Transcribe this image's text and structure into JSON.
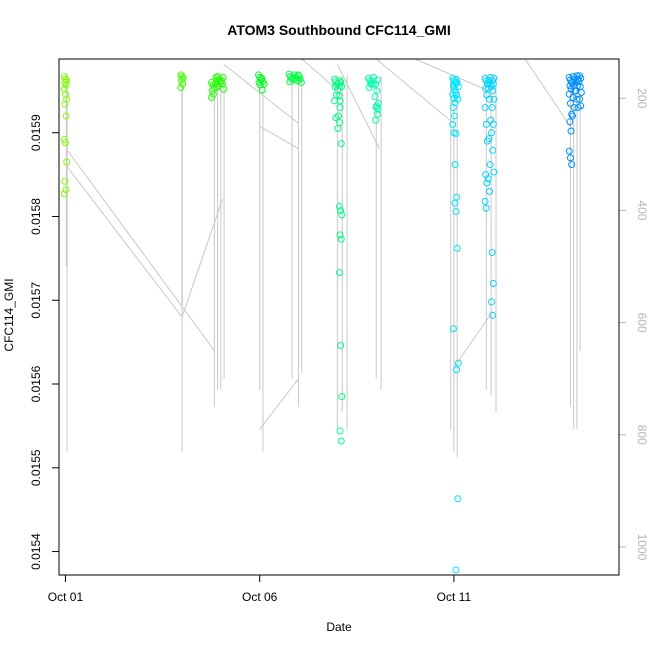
{
  "chart_data": {
    "type": "scatter",
    "title": "ATOM3 Southbound CFC114_GMI",
    "xlabel": "Date",
    "ylabel": "CFC114_GMI",
    "x_ticks": [
      {
        "value": "2017-10-01",
        "label": "Oct 01"
      },
      {
        "value": "2017-10-06",
        "label": "Oct 06"
      },
      {
        "value": "2017-10-11",
        "label": "Oct 11"
      }
    ],
    "y_ticks": [
      0.0154,
      0.0155,
      0.0156,
      0.0157,
      0.0158,
      0.0159
    ],
    "y2_label": "",
    "y2_ticks": [
      200,
      400,
      600,
      800,
      1000
    ],
    "xlim": [
      "2017-09-30T20:00",
      "2017-10-15T06:00"
    ],
    "ylim": [
      0.015372,
      0.015988
    ],
    "y2lim": [
      1050,
      130
    ],
    "y2_reversed": true,
    "y2_tick_color": "#b5b5b5",
    "grid": false,
    "legend": "none",
    "colors": {
      "day1": "#80ff00",
      "day4": "#40ff00",
      "day5": "#20ff00",
      "day6": "#00ff20",
      "day7": "#00ff40",
      "day8": "#00ff80",
      "day9": "#00ffaa",
      "day11": "#00e6ff",
      "day12": "#00d5ff",
      "day14": "#0090ff",
      "pressure_line": "#c8c8c8"
    },
    "pressure_profiles": [
      {
        "time": "2017-10-01T00:30",
        "min": 155,
        "max": 500
      },
      {
        "time": "2017-10-01T01:00",
        "min": 160,
        "max": 830
      },
      {
        "time": "2017-10-04T00:00",
        "min": 160,
        "max": 830
      },
      {
        "time": "2017-10-04T00:15",
        "min": 170,
        "max": 570
      },
      {
        "time": "2017-10-04T20:00",
        "min": 160,
        "max": 750
      },
      {
        "time": "2017-10-04T22:00",
        "min": 160,
        "max": 720
      },
      {
        "time": "2017-10-05T00:00",
        "min": 160,
        "max": 720
      },
      {
        "time": "2017-10-05T02:00",
        "min": 160,
        "max": 700
      },
      {
        "time": "2017-10-06T00:00",
        "min": 160,
        "max": 720
      },
      {
        "time": "2017-10-06T02:00",
        "min": 160,
        "max": 830
      },
      {
        "time": "2017-10-06T20:00",
        "min": 160,
        "max": 700
      },
      {
        "time": "2017-10-07T00:00",
        "min": 160,
        "max": 750
      },
      {
        "time": "2017-10-07T02:00",
        "min": 160,
        "max": 690
      },
      {
        "time": "2017-10-08T00:00",
        "min": 160,
        "max": 790
      },
      {
        "time": "2017-10-08T03:00",
        "min": 160,
        "max": 760
      },
      {
        "time": "2017-10-08T06:00",
        "min": 160,
        "max": 790
      },
      {
        "time": "2017-10-09T00:00",
        "min": 160,
        "max": 700
      },
      {
        "time": "2017-10-09T03:00",
        "min": 160,
        "max": 720
      },
      {
        "time": "2017-10-10T22:00",
        "min": 160,
        "max": 790
      },
      {
        "time": "2017-10-11T00:00",
        "min": 160,
        "max": 830
      },
      {
        "time": "2017-10-11T02:00",
        "min": 160,
        "max": 840
      },
      {
        "time": "2017-10-11T20:00",
        "min": 160,
        "max": 720
      },
      {
        "time": "2017-10-11T23:00",
        "min": 160,
        "max": 730
      },
      {
        "time": "2017-10-12T02:00",
        "min": 160,
        "max": 760
      },
      {
        "time": "2017-10-14T00:00",
        "min": 160,
        "max": 750
      },
      {
        "time": "2017-10-14T02:00",
        "min": 160,
        "max": 790
      },
      {
        "time": "2017-10-14T04:00",
        "min": 160,
        "max": 790
      },
      {
        "time": "2017-10-14T06:00",
        "min": 160,
        "max": 650
      }
    ],
    "pressure_transits": [
      {
        "from": [
          "2017-10-01T00:30",
          320
        ],
        "to": [
          "2017-10-04T00:00",
          590
        ]
      },
      {
        "from": [
          "2017-10-01T00:30",
          290
        ],
        "to": [
          "2017-10-04T20:00",
          650
        ]
      },
      {
        "from": [
          "2017-10-04T00:00",
          590
        ],
        "to": [
          "2017-10-05T01:00",
          380
        ]
      },
      {
        "from": [
          "2017-10-05T02:00",
          140
        ],
        "to": [
          "2017-10-07T00:00",
          245
        ]
      },
      {
        "from": [
          "2017-10-06T00:00",
          250
        ],
        "to": [
          "2017-10-07T00:00",
          290
        ]
      },
      {
        "from": [
          "2017-10-06T00:00",
          790
        ],
        "to": [
          "2017-10-07T00:00",
          700
        ]
      },
      {
        "from": [
          "2017-10-07T02:00",
          130
        ],
        "to": [
          "2017-10-08T04:00",
          195
        ]
      },
      {
        "from": [
          "2017-10-08T00:00",
          140
        ],
        "to": [
          "2017-10-09T02:00",
          290
        ]
      },
      {
        "from": [
          "2017-10-09T00:00",
          130
        ],
        "to": [
          "2017-10-11T00:00",
          245
        ]
      },
      {
        "from": [
          "2017-10-10T00:00",
          130
        ],
        "to": [
          "2017-10-11T20:00",
          185
        ]
      },
      {
        "from": [
          "2017-10-11T00:00",
          680
        ],
        "to": [
          "2017-10-12T00:00",
          580
        ]
      },
      {
        "from": [
          "2017-10-12T20:00",
          130
        ],
        "to": [
          "2017-10-14T01:00",
          255
        ]
      }
    ],
    "series": [
      {
        "group": "day1",
        "x": [
          "2017-10-01T00:00",
          "2017-10-01T00:00",
          "2017-10-01T00:00",
          "2017-10-01T00:00",
          "2017-10-01T00:00",
          "2017-10-01T00:00",
          "2017-10-01T00:00",
          "2017-10-01T00:00",
          "2017-10-01T00:00",
          "2017-10-01T00:00",
          "2017-10-01T00:00",
          "2017-10-01T00:00",
          "2017-10-01T00:00",
          "2017-10-01T00:00",
          "2017-10-01T00:00",
          "2017-10-01T00:00"
        ],
        "y": [
          0.015967,
          0.015964,
          0.015962,
          0.01596,
          0.015957,
          0.015952,
          0.015946,
          0.01594,
          0.015934,
          0.01592,
          0.015892,
          0.015888,
          0.015865,
          0.015842,
          0.015832,
          0.015827
        ]
      },
      {
        "group": "day4",
        "x": [
          "2017-10-04T00:00",
          "2017-10-04T00:00",
          "2017-10-04T00:00",
          "2017-10-04T00:00",
          "2017-10-04T00:00",
          "2017-10-04T00:00"
        ],
        "y": [
          0.015969,
          0.015967,
          0.015965,
          0.015963,
          0.015958,
          0.015954
        ]
      },
      {
        "group": "day5",
        "x": [
          "2017-10-04T19:00",
          "2017-10-04T19:00",
          "2017-10-04T19:00",
          "2017-10-04T19:00",
          "2017-10-04T19:00",
          "2017-10-04T19:00",
          "2017-10-04T21:00",
          "2017-10-04T21:00",
          "2017-10-04T21:00",
          "2017-10-04T21:00",
          "2017-10-04T23:00",
          "2017-10-04T23:00",
          "2017-10-04T23:00",
          "2017-10-04T23:00",
          "2017-10-05T01:00",
          "2017-10-05T01:00",
          "2017-10-05T01:00",
          "2017-10-05T01:00"
        ],
        "y": [
          0.01596,
          0.015957,
          0.015953,
          0.01595,
          0.015946,
          0.015942,
          0.015966,
          0.015962,
          0.015958,
          0.015954,
          0.015967,
          0.015964,
          0.01596,
          0.015956,
          0.015966,
          0.015962,
          0.015958,
          0.015952
        ]
      },
      {
        "group": "day6",
        "x": [
          "2017-10-06T00:00",
          "2017-10-06T00:00",
          "2017-10-06T00:00",
          "2017-10-06T00:00",
          "2017-10-06T00:00",
          "2017-10-06T02:00",
          "2017-10-06T02:00",
          "2017-10-06T02:00",
          "2017-10-06T02:00"
        ],
        "y": [
          0.015969,
          0.015966,
          0.015963,
          0.01596,
          0.015957,
          0.015965,
          0.015961,
          0.015958,
          0.015951
        ]
      },
      {
        "group": "day7",
        "x": [
          "2017-10-06T19:00",
          "2017-10-06T19:00",
          "2017-10-06T19:00",
          "2017-10-06T19:00",
          "2017-10-06T21:00",
          "2017-10-06T21:00",
          "2017-10-06T21:00",
          "2017-10-06T23:00",
          "2017-10-06T23:00",
          "2017-10-06T23:00",
          "2017-10-07T01:00",
          "2017-10-07T01:00",
          "2017-10-07T01:00"
        ],
        "y": [
          0.01597,
          0.015967,
          0.015964,
          0.015961,
          0.015969,
          0.015966,
          0.015963,
          0.015969,
          0.015966,
          0.015962,
          0.015968,
          0.015964,
          0.01596
        ]
      },
      {
        "group": "day8",
        "x": [
          "2017-10-07T23:00",
          "2017-10-07T23:00",
          "2017-10-07T23:00",
          "2017-10-07T23:00",
          "2017-10-07T23:00",
          "2017-10-07T23:00",
          "2017-10-07T23:00",
          "2017-10-08T01:00",
          "2017-10-08T01:00",
          "2017-10-08T01:00",
          "2017-10-08T01:00",
          "2017-10-08T01:00",
          "2017-10-08T01:00",
          "2017-10-08T01:00",
          "2017-10-08T01:00",
          "2017-10-08T01:00",
          "2017-10-08T02:00",
          "2017-10-08T02:00",
          "2017-10-08T02:00",
          "2017-10-08T02:00",
          "2017-10-08T02:00",
          "2017-10-08T02:00",
          "2017-10-08T02:00",
          "2017-10-08T02:00",
          "2017-10-08T02:00",
          "2017-10-08T02:00",
          "2017-10-08T02:00",
          "2017-10-08T02:00",
          "2017-10-08T02:00",
          "2017-10-08T02:00"
        ],
        "y": [
          0.015964,
          0.015961,
          0.015958,
          0.015955,
          0.015945,
          0.015938,
          0.015918,
          0.015962,
          0.015959,
          0.015956,
          0.015951,
          0.015944,
          0.015938,
          0.01592,
          0.015912,
          0.015905,
          0.01596,
          0.015955,
          0.01593,
          0.015887,
          0.015812,
          0.015807,
          0.015802,
          0.015778,
          0.015773,
          0.015733,
          0.015646,
          0.015585,
          0.015544,
          0.015532
        ]
      },
      {
        "group": "day9",
        "x": [
          "2017-10-08T20:00",
          "2017-10-08T20:00",
          "2017-10-08T20:00",
          "2017-10-08T20:00",
          "2017-10-08T22:00",
          "2017-10-08T22:00",
          "2017-10-08T22:00",
          "2017-10-09T00:00",
          "2017-10-09T00:00",
          "2017-10-09T00:00",
          "2017-10-09T00:00",
          "2017-10-09T00:00",
          "2017-10-09T00:00",
          "2017-10-09T00:00",
          "2017-10-09T01:00",
          "2017-10-09T01:00",
          "2017-10-09T01:00"
        ],
        "y": [
          0.015965,
          0.015962,
          0.015958,
          0.015954,
          0.015966,
          0.015962,
          0.015958,
          0.015963,
          0.015958,
          0.01595,
          0.015943,
          0.01593,
          0.015922,
          0.015915,
          0.015935,
          0.015932,
          0.015928
        ]
      },
      {
        "group": "day11",
        "x": [
          "2017-10-11T00:00",
          "2017-10-11T00:00",
          "2017-10-11T00:00",
          "2017-10-11T00:00",
          "2017-10-11T00:00",
          "2017-10-11T00:00",
          "2017-10-11T00:00",
          "2017-10-11T00:00",
          "2017-10-11T00:00",
          "2017-10-11T00:00",
          "2017-10-11T00:00",
          "2017-10-11T00:00",
          "2017-10-11T00:00",
          "2017-10-11T00:00",
          "2017-10-11T01:00",
          "2017-10-11T01:00",
          "2017-10-11T01:00",
          "2017-10-11T01:00",
          "2017-10-11T01:00",
          "2017-10-11T01:00",
          "2017-10-11T02:00",
          "2017-10-11T02:00",
          "2017-10-11T02:00",
          "2017-10-11T02:00",
          "2017-10-11T02:00",
          "2017-10-11T02:00",
          "2017-10-11T02:00",
          "2017-10-11T02:00",
          "2017-10-11T02:00",
          "2017-10-11T02:00",
          "2017-10-11T02:00"
        ],
        "y": [
          0.015965,
          0.015962,
          0.015959,
          0.015956,
          0.015951,
          0.015946,
          0.015941,
          0.015936,
          0.01593,
          0.01592,
          0.01591,
          0.0159,
          0.015862,
          0.015666,
          0.01596,
          0.015955,
          0.015948,
          0.015823,
          0.015816,
          0.015806,
          0.015964,
          0.01596,
          0.015955,
          0.015945,
          0.01594,
          0.015899,
          0.015762,
          0.015625,
          0.015617,
          0.015463,
          0.015378
        ]
      },
      {
        "group": "day12",
        "x": [
          "2017-10-11T20:00",
          "2017-10-11T20:00",
          "2017-10-11T20:00",
          "2017-10-11T20:00",
          "2017-10-11T20:00",
          "2017-10-11T20:00",
          "2017-10-11T20:00",
          "2017-10-11T20:00",
          "2017-10-11T20:00",
          "2017-10-11T20:00",
          "2017-10-11T20:00",
          "2017-10-11T20:00",
          "2017-10-11T22:00",
          "2017-10-11T22:00",
          "2017-10-11T22:00",
          "2017-10-11T22:00",
          "2017-10-11T22:00",
          "2017-10-11T22:00",
          "2017-10-11T22:00",
          "2017-10-11T22:00",
          "2017-10-11T22:00",
          "2017-10-11T22:00",
          "2017-10-12T00:00",
          "2017-10-12T00:00",
          "2017-10-12T00:00",
          "2017-10-12T00:00",
          "2017-10-12T00:00",
          "2017-10-12T00:00",
          "2017-10-12T00:00",
          "2017-10-12T00:00",
          "2017-10-12T00:00",
          "2017-10-12T00:00",
          "2017-10-12T00:00",
          "2017-10-12T00:00",
          "2017-10-12T00:00",
          "2017-10-12T00:00",
          "2017-10-12T00:00"
        ],
        "y": [
          0.015965,
          0.015962,
          0.015958,
          0.015953,
          0.015945,
          0.01593,
          0.01591,
          0.01589,
          0.01585,
          0.01584,
          0.015818,
          0.01581,
          0.015966,
          0.015962,
          0.015958,
          0.015953,
          0.01594,
          0.015915,
          0.015893,
          0.015862,
          0.015845,
          0.01583,
          0.015965,
          0.015962,
          0.015958,
          0.015955,
          0.01595,
          0.01594,
          0.01593,
          0.01591,
          0.0159,
          0.015879,
          0.015853,
          0.015757,
          0.01572,
          0.015698,
          0.015682
        ]
      },
      {
        "group": "day14",
        "x": [
          "2017-10-14T00:00",
          "2017-10-14T00:00",
          "2017-10-14T00:00",
          "2017-10-14T00:00",
          "2017-10-14T00:00",
          "2017-10-14T00:00",
          "2017-10-14T00:00",
          "2017-10-14T00:00",
          "2017-10-14T00:00",
          "2017-10-14T00:00",
          "2017-10-14T00:00",
          "2017-10-14T00:00",
          "2017-10-14T00:00",
          "2017-10-14T02:00",
          "2017-10-14T02:00",
          "2017-10-14T02:00",
          "2017-10-14T02:00",
          "2017-10-14T02:00",
          "2017-10-14T02:00",
          "2017-10-14T02:00",
          "2017-10-14T02:00",
          "2017-10-14T04:00",
          "2017-10-14T04:00",
          "2017-10-14T04:00",
          "2017-10-14T04:00",
          "2017-10-14T04:00",
          "2017-10-14T04:00",
          "2017-10-14T04:00",
          "2017-10-14T06:00",
          "2017-10-14T06:00",
          "2017-10-14T06:00",
          "2017-10-14T06:00",
          "2017-10-14T06:00",
          "2017-10-14T06:00",
          "2017-10-14T06:00"
        ],
        "y": [
          0.015966,
          0.015963,
          0.01596,
          0.015956,
          0.015952,
          0.015946,
          0.015935,
          0.015922,
          0.015913,
          0.015902,
          0.015878,
          0.01587,
          0.015862,
          0.015967,
          0.015964,
          0.01596,
          0.015956,
          0.01595,
          0.015942,
          0.01593,
          0.01592,
          0.015968,
          0.015964,
          0.01596,
          0.015956,
          0.01595,
          0.01594,
          0.01593,
          0.015968,
          0.015965,
          0.015961,
          0.015955,
          0.015948,
          0.01594,
          0.015932
        ]
      }
    ]
  }
}
